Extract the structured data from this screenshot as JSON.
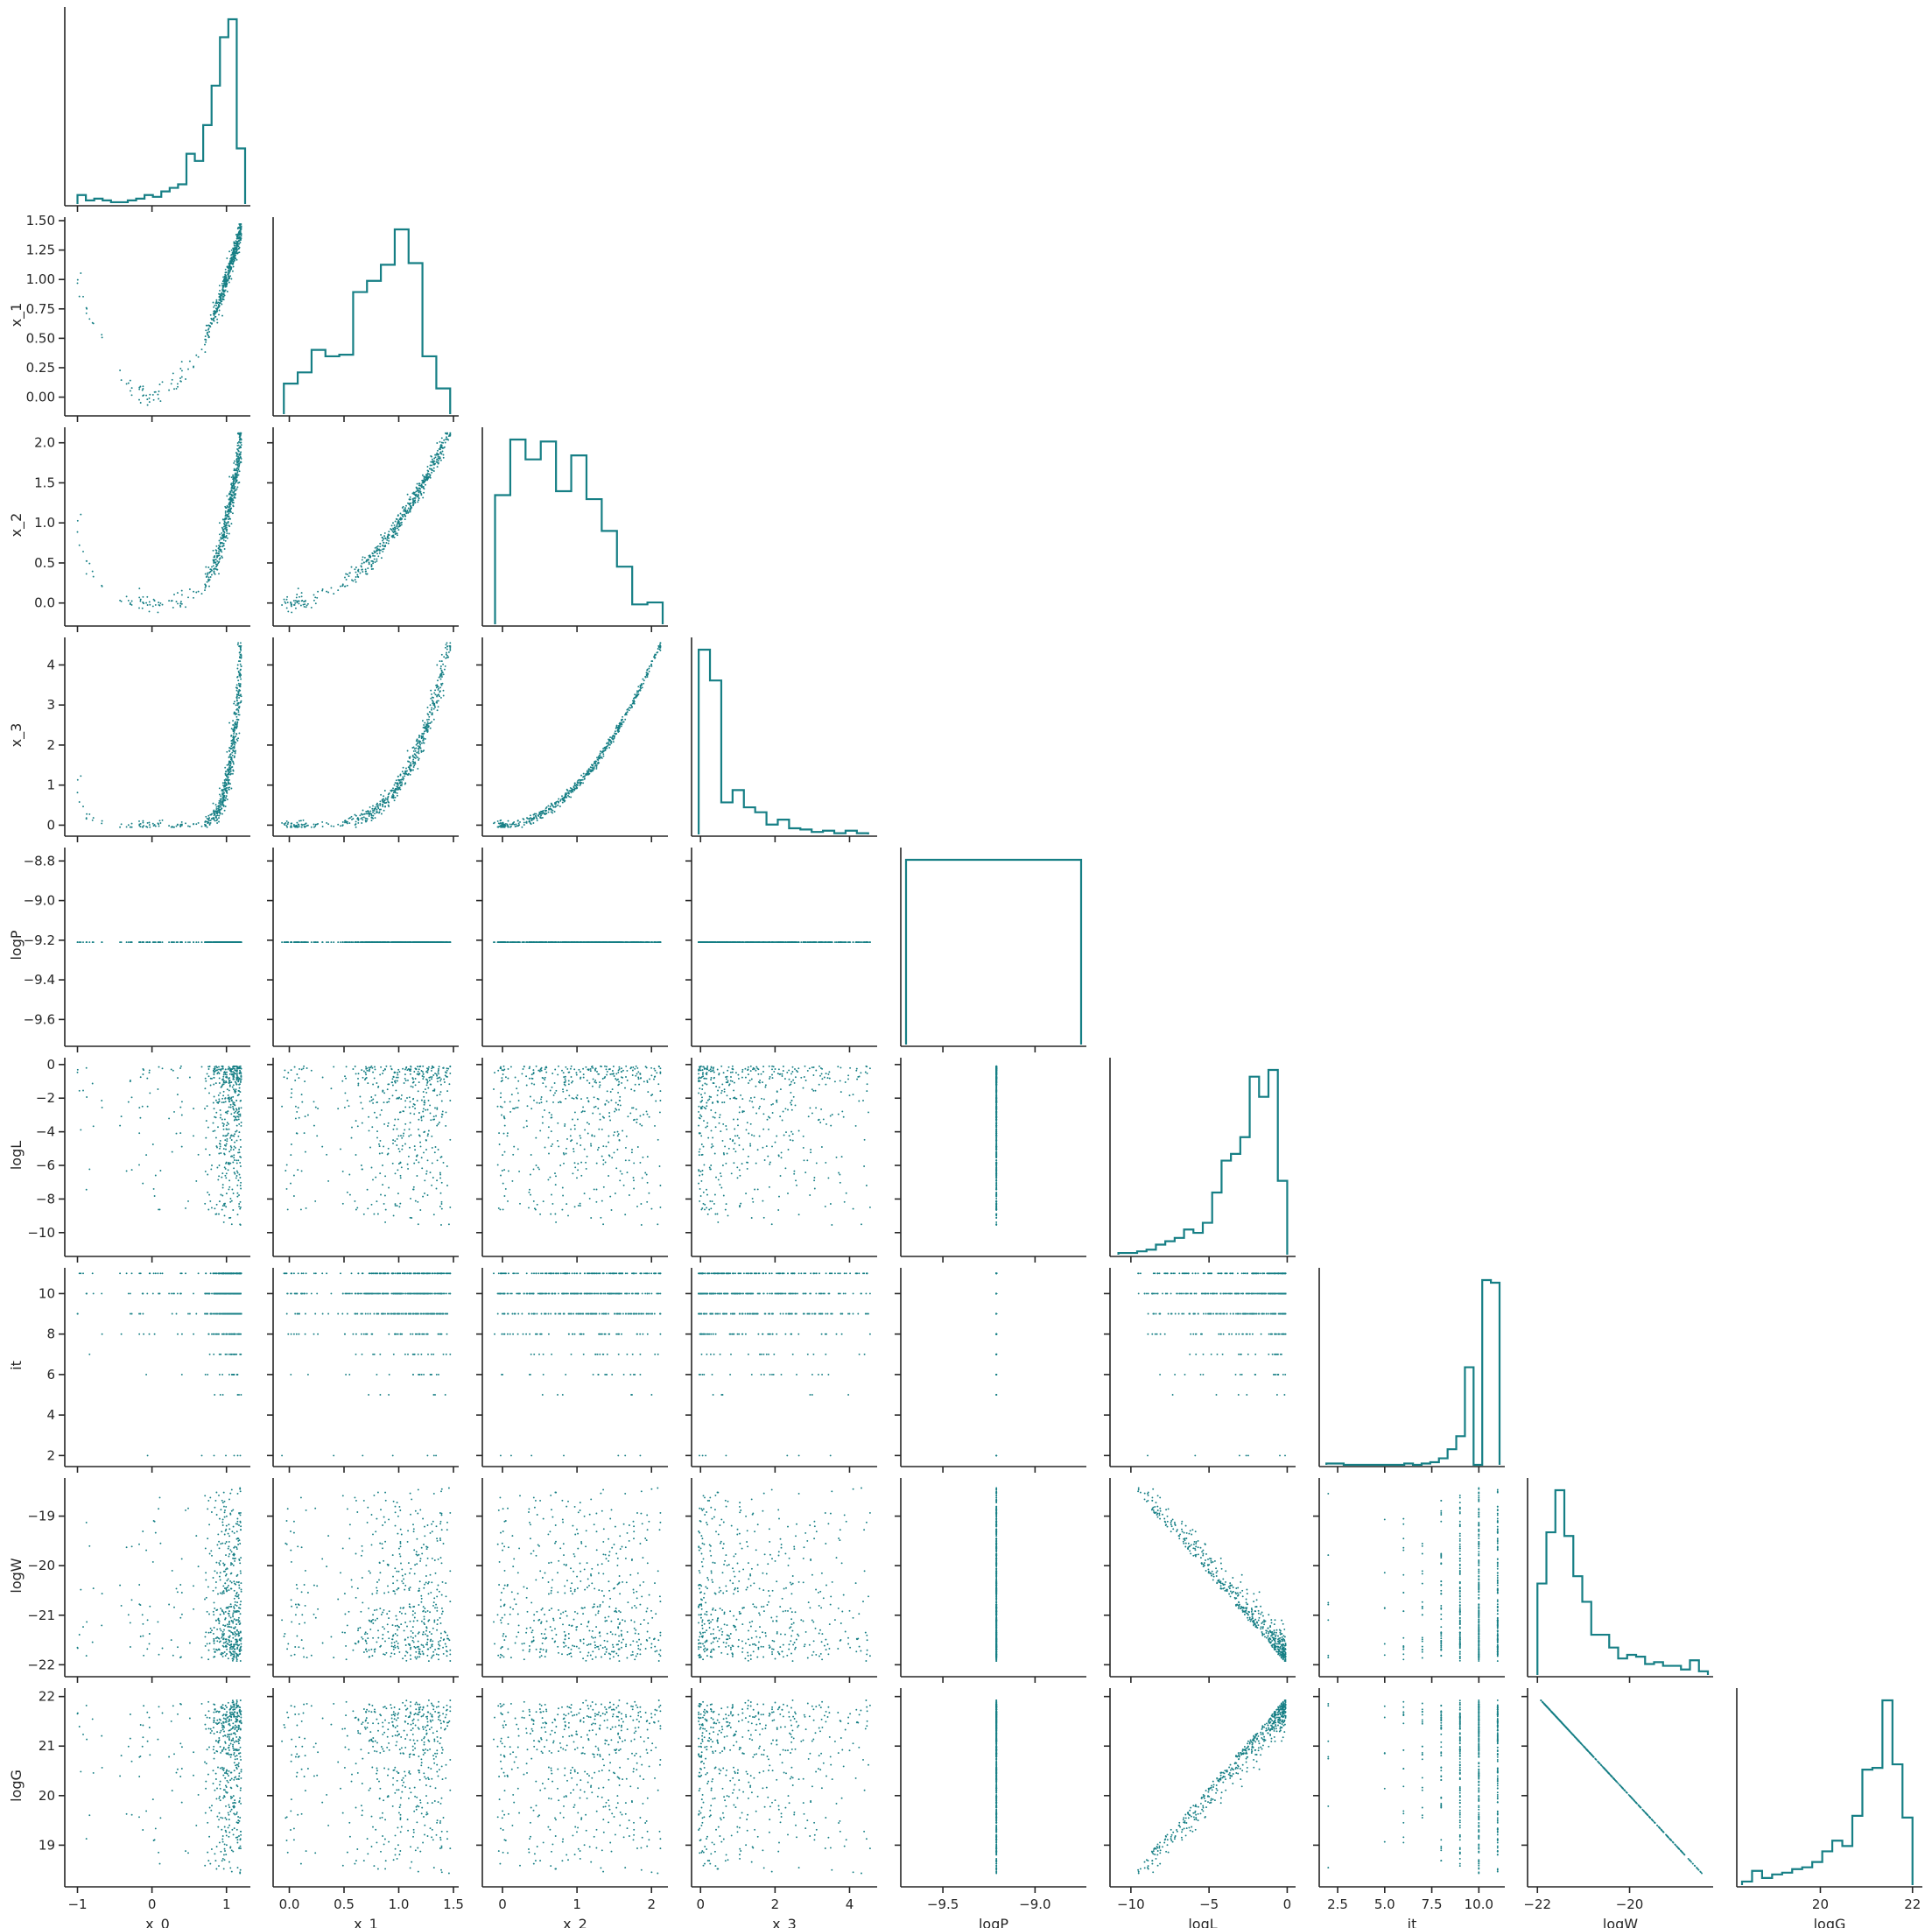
{
  "chart_data": {
    "type": "pairplot",
    "variables": [
      "x_0",
      "x_1",
      "x_2",
      "x_3",
      "logP",
      "logL",
      "it",
      "logW",
      "logG"
    ],
    "color": "#167f85",
    "axis_color": "#262626",
    "corner": true,
    "diagonal": "step-histogram",
    "off_diagonal": "scatter",
    "n_samples": 520,
    "ranges": {
      "x_0": [
        -1.1,
        1.25
      ],
      "x_1": [
        -0.1,
        1.5
      ],
      "x_2": [
        -0.2,
        2.15
      ],
      "x_3": [
        -0.1,
        4.6
      ],
      "logP": [
        -9.7,
        -8.75
      ],
      "logL": [
        -11.0,
        0.2
      ],
      "it": [
        1.8,
        11.1
      ],
      "logW": [
        -22.1,
        -18.3
      ],
      "logG": [
        18.3,
        22.1
      ]
    },
    "ticks": {
      "x_0": [
        -1,
        0,
        1
      ],
      "x_1": [
        0.0,
        0.5,
        1.0,
        1.5
      ],
      "x_2": [
        0,
        1,
        2
      ],
      "x_3": [
        0,
        2,
        4
      ],
      "logP": [
        -9.5,
        -9.0
      ],
      "logL": [
        -10,
        -5,
        0
      ],
      "it": [
        2.5,
        5.0,
        7.5,
        10.0
      ],
      "logW": [
        -22,
        -20
      ],
      "logG": [
        20,
        22
      ]
    },
    "y_ticks": {
      "x_1": [
        0.0,
        0.25,
        0.5,
        0.75,
        1.0,
        1.25,
        1.5
      ],
      "x_2": [
        0.0,
        0.5,
        1.0,
        1.5,
        2.0
      ],
      "x_3": [
        0,
        1,
        2,
        3,
        4
      ],
      "logP": [
        -9.6,
        -9.4,
        -9.2,
        -9.0,
        -8.8
      ],
      "logL": [
        -10,
        -8,
        -6,
        -4,
        -2,
        0
      ],
      "it": [
        2,
        4,
        6,
        8,
        10
      ],
      "logW": [
        -22,
        -21,
        -20,
        -19
      ],
      "logG": [
        19,
        20,
        21,
        22
      ]
    },
    "tick_labels": {
      "x_0": [
        "−1",
        "0",
        "1"
      ],
      "x_1": [
        "0.0",
        "0.5",
        "1.0",
        "1.5"
      ],
      "x_2": [
        "0",
        "1",
        "2"
      ],
      "x_3": [
        "0",
        "2",
        "4"
      ],
      "logP": [
        "−9.5",
        "−9.0"
      ],
      "logL": [
        "−10",
        "−5",
        "0"
      ],
      "it": [
        "2.5",
        "5.0",
        "7.5",
        "10.0"
      ],
      "logW": [
        "−22",
        "−20"
      ],
      "logG": [
        "20",
        "22"
      ]
    },
    "y_tick_labels": {
      "x_1": [
        "0.00",
        "0.25",
        "0.50",
        "0.75",
        "1.00",
        "1.25",
        "1.50"
      ],
      "x_2": [
        "0.0",
        "0.5",
        "1.0",
        "1.5",
        "2.0"
      ],
      "x_3": [
        "0",
        "1",
        "2",
        "3",
        "4"
      ],
      "logP": [
        "−9.6",
        "−9.4",
        "−9.2",
        "−9.0",
        "−8.8"
      ],
      "logL": [
        "−10",
        "−8",
        "−6",
        "−4",
        "−2",
        "0"
      ],
      "it": [
        "2",
        "4",
        "6",
        "8",
        "10"
      ],
      "logW": [
        "−22",
        "−21",
        "−20",
        "−19"
      ],
      "logG": [
        "19",
        "20",
        "21",
        "22"
      ]
    },
    "histograms": {
      "x_0": {
        "range": [
          -1.0,
          1.25
        ],
        "counts": [
          5,
          2,
          3,
          2,
          1,
          1,
          2,
          3,
          5,
          4,
          7,
          9,
          11,
          28,
          24,
          44,
          66,
          93,
          103,
          31
        ]
      },
      "x_1": {
        "range": [
          -0.05,
          1.47
        ],
        "counts": [
          19,
          26,
          40,
          36,
          37,
          76,
          83,
          93,
          115,
          94,
          36,
          16
        ]
      },
      "x_2": {
        "range": [
          -0.1,
          2.15
        ],
        "counts": [
          65,
          93,
          83,
          92,
          67,
          85,
          63,
          47,
          29,
          10,
          11
        ]
      },
      "x_3": {
        "range": [
          -0.05,
          4.5
        ],
        "counts": [
          150,
          125,
          26,
          36,
          22,
          18,
          8,
          12,
          5,
          4,
          2,
          3,
          1,
          3,
          1
        ]
      },
      "logP": {
        "range": [
          -9.7,
          -8.75
        ],
        "counts": [
          520
        ]
      },
      "logL": {
        "range": [
          -10.8,
          0.0
        ],
        "counts": [
          1,
          1,
          2,
          3,
          6,
          8,
          10,
          15,
          13,
          19,
          37,
          56,
          60,
          70,
          106,
          94,
          110,
          44
        ]
      },
      "it": {
        "range": [
          1.9,
          11.1
        ],
        "counts": [
          1,
          1,
          0,
          0,
          0,
          0,
          0,
          0,
          0,
          1,
          0,
          1,
          2,
          5,
          12,
          22,
          75,
          0,
          142,
          140
        ]
      },
      "logW": {
        "range": [
          -22.0,
          -18.3
        ],
        "counts": [
          50,
          78,
          101,
          76,
          54,
          40,
          22,
          22,
          15,
          9,
          11,
          10,
          6,
          7,
          5,
          5,
          3,
          8,
          2
        ]
      },
      "logG": {
        "range": [
          18.3,
          22.0
        ],
        "counts": [
          2,
          8,
          4,
          6,
          7,
          9,
          10,
          13,
          19,
          25,
          22,
          39,
          65,
          66,
          104,
          68,
          38
        ]
      }
    }
  }
}
